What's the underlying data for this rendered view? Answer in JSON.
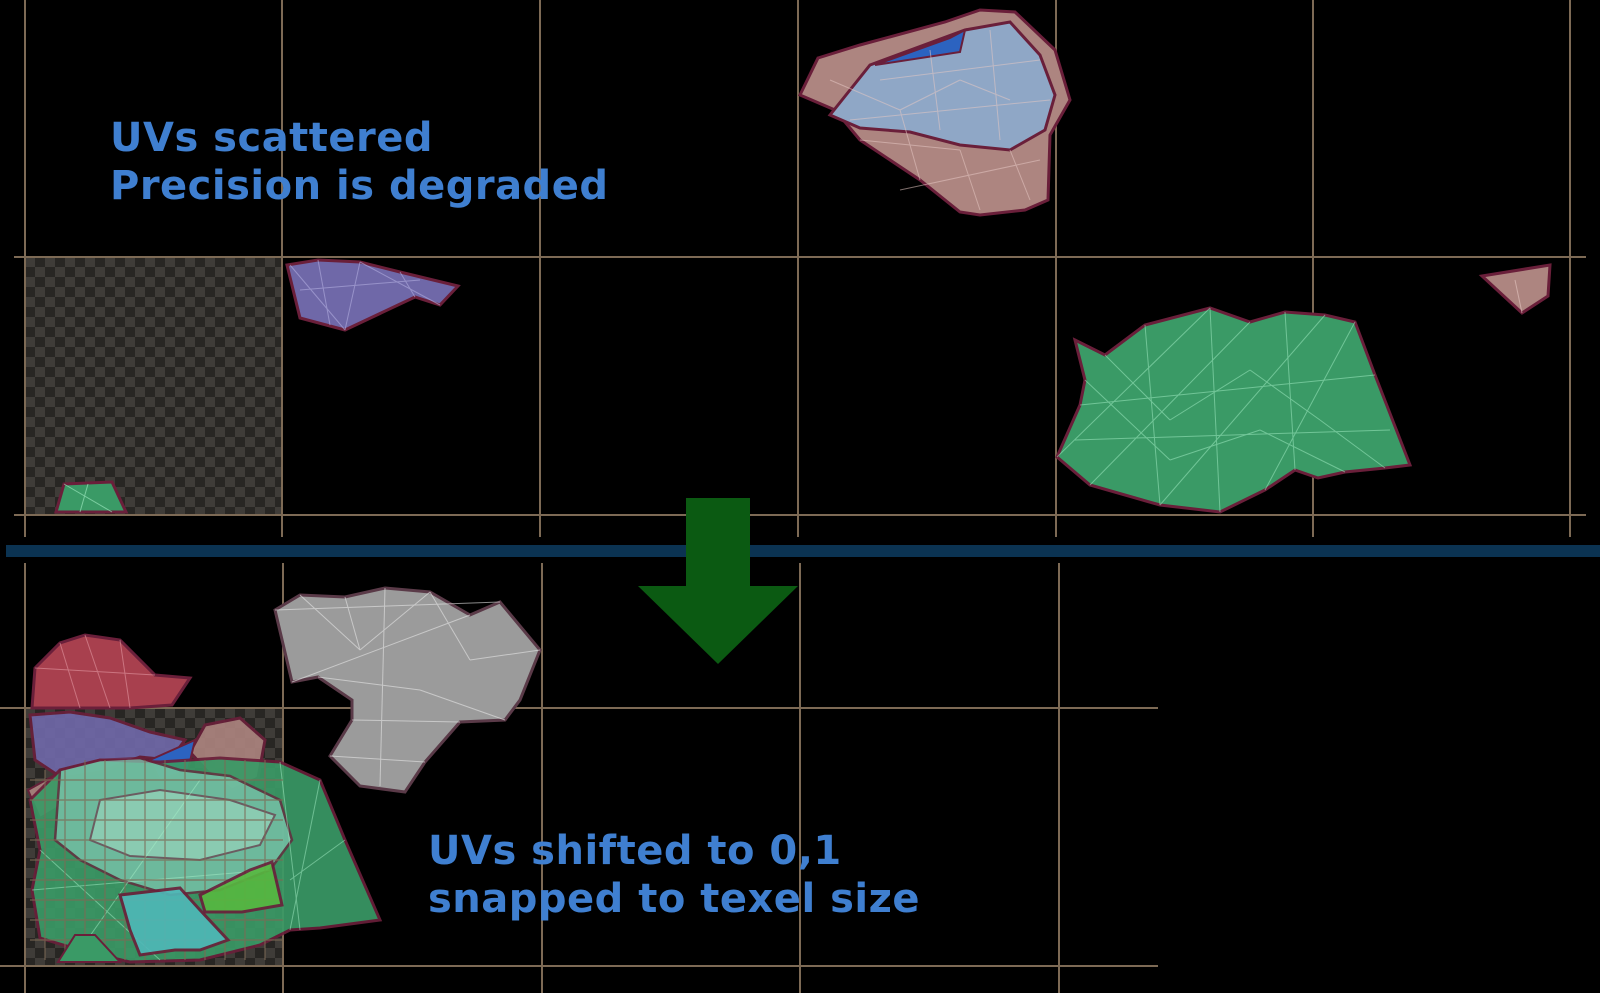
{
  "panels": [
    {
      "id": "before",
      "caption_lines": [
        "UVs scattered",
        "Precision is degraded"
      ]
    },
    {
      "id": "after",
      "caption_lines": [
        "UVs shifted to 0,1",
        "snapped to texel size"
      ]
    }
  ],
  "colors": {
    "background": "#000000",
    "grid_line": "#7d6a55",
    "separator": "#0b3352",
    "arrow": "#0b5a12",
    "caption": "#3f7fd0",
    "shell_outline": "#6a1f3a",
    "shell_pink": "#ad8580",
    "shell_lightblue": "#8fa7c6",
    "shell_blue": "#2c63c0",
    "shell_purple": "#6f68a8",
    "shell_green": "#3a9a66",
    "shell_red": "#a8404e",
    "shell_grey": "#9b9b9b",
    "shell_lime": "#57b840",
    "shell_teal": "#4fb8b8"
  },
  "icons": [
    "down-arrow-icon",
    "checker-texture"
  ]
}
